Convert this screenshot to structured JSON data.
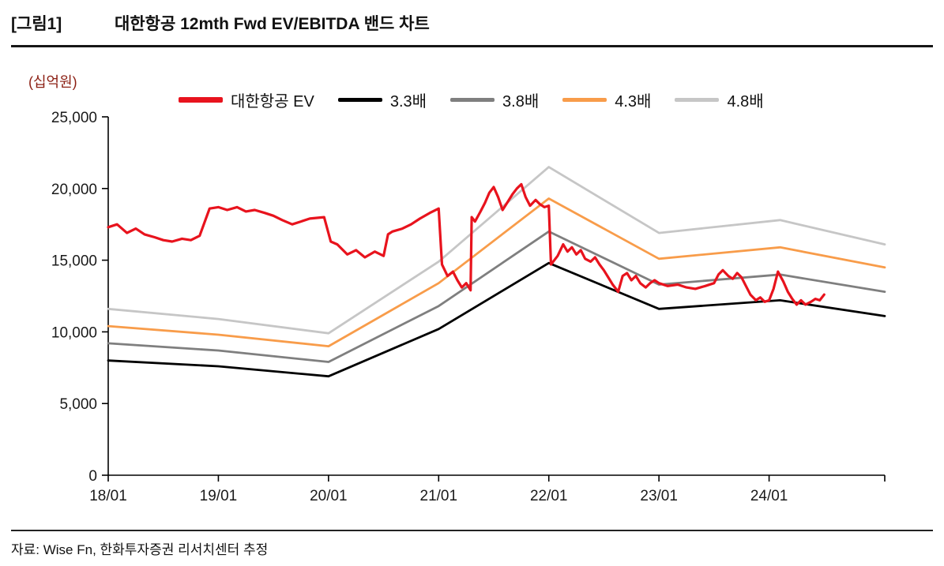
{
  "header": {
    "figure_label": "[그림1]",
    "title": "대한항공 12mth Fwd EV/EBITDA 밴드 차트"
  },
  "footer": {
    "source": "자료: Wise Fn, 한화투자증권 리서치센터 추정"
  },
  "chart_data": {
    "type": "line",
    "title": "대한항공 12mth Fwd EV/EBITDA 밴드 차트",
    "unit_label": "(십억원)",
    "ylabel": "십억원",
    "xlabel": "",
    "grid": false,
    "legend_position": "top",
    "xlim": [
      18.0,
      25.05
    ],
    "ylim": [
      0,
      25000
    ],
    "axis_color": "#000000",
    "tick_color": "#1a1a1a",
    "x_ticks": [
      {
        "v": 18.0,
        "label": "18/01"
      },
      {
        "v": 19.0,
        "label": "19/01"
      },
      {
        "v": 20.0,
        "label": "20/01"
      },
      {
        "v": 21.0,
        "label": "21/01"
      },
      {
        "v": 22.0,
        "label": "22/01"
      },
      {
        "v": 23.0,
        "label": "23/01"
      },
      {
        "v": 24.0,
        "label": "24/01"
      },
      {
        "v": 25.05,
        "label": ""
      }
    ],
    "y_ticks": [
      {
        "v": 0,
        "label": "0"
      },
      {
        "v": 5000,
        "label": "5,000"
      },
      {
        "v": 10000,
        "label": "10,000"
      },
      {
        "v": 15000,
        "label": "15,000"
      },
      {
        "v": 20000,
        "label": "20,000"
      },
      {
        "v": 25000,
        "label": "25,000"
      }
    ],
    "series": [
      {
        "id": "korean-air-ev",
        "name": "대한항공 EV",
        "color": "#e8131d",
        "width": 3.2,
        "points": [
          [
            18.0,
            17300
          ],
          [
            18.08,
            17500
          ],
          [
            18.17,
            16900
          ],
          [
            18.25,
            17200
          ],
          [
            18.33,
            16800
          ],
          [
            18.42,
            16600
          ],
          [
            18.5,
            16400
          ],
          [
            18.58,
            16300
          ],
          [
            18.67,
            16500
          ],
          [
            18.75,
            16400
          ],
          [
            18.83,
            16700
          ],
          [
            18.92,
            18600
          ],
          [
            19.0,
            18700
          ],
          [
            19.08,
            18500
          ],
          [
            19.17,
            18700
          ],
          [
            19.25,
            18400
          ],
          [
            19.33,
            18500
          ],
          [
            19.42,
            18300
          ],
          [
            19.5,
            18100
          ],
          [
            19.58,
            17800
          ],
          [
            19.67,
            17500
          ],
          [
            19.75,
            17700
          ],
          [
            19.83,
            17900
          ],
          [
            19.96,
            18000
          ],
          [
            20.02,
            16300
          ],
          [
            20.08,
            16100
          ],
          [
            20.17,
            15400
          ],
          [
            20.25,
            15700
          ],
          [
            20.33,
            15200
          ],
          [
            20.42,
            15600
          ],
          [
            20.5,
            15300
          ],
          [
            20.54,
            16800
          ],
          [
            20.58,
            17000
          ],
          [
            20.67,
            17200
          ],
          [
            20.75,
            17500
          ],
          [
            20.83,
            17900
          ],
          [
            20.92,
            18300
          ],
          [
            21.0,
            18600
          ],
          [
            21.03,
            14700
          ],
          [
            21.08,
            13900
          ],
          [
            21.13,
            14200
          ],
          [
            21.17,
            13600
          ],
          [
            21.21,
            13100
          ],
          [
            21.25,
            13400
          ],
          [
            21.29,
            12900
          ],
          [
            21.3,
            18000
          ],
          [
            21.33,
            17700
          ],
          [
            21.38,
            18400
          ],
          [
            21.42,
            19000
          ],
          [
            21.46,
            19700
          ],
          [
            21.5,
            20100
          ],
          [
            21.54,
            19400
          ],
          [
            21.58,
            18500
          ],
          [
            21.63,
            19100
          ],
          [
            21.67,
            19600
          ],
          [
            21.71,
            20000
          ],
          [
            21.75,
            20300
          ],
          [
            21.79,
            19400
          ],
          [
            21.83,
            18800
          ],
          [
            21.88,
            19200
          ],
          [
            21.92,
            18900
          ],
          [
            21.96,
            18700
          ],
          [
            22.0,
            18800
          ],
          [
            22.02,
            14700
          ],
          [
            22.08,
            15300
          ],
          [
            22.13,
            16100
          ],
          [
            22.17,
            15600
          ],
          [
            22.21,
            15900
          ],
          [
            22.25,
            15400
          ],
          [
            22.29,
            15700
          ],
          [
            22.33,
            15100
          ],
          [
            22.38,
            14900
          ],
          [
            22.42,
            15200
          ],
          [
            22.46,
            14700
          ],
          [
            22.5,
            14300
          ],
          [
            22.54,
            13800
          ],
          [
            22.58,
            13300
          ],
          [
            22.63,
            12800
          ],
          [
            22.67,
            13900
          ],
          [
            22.71,
            14100
          ],
          [
            22.75,
            13600
          ],
          [
            22.79,
            13900
          ],
          [
            22.83,
            13400
          ],
          [
            22.88,
            13100
          ],
          [
            22.92,
            13400
          ],
          [
            22.96,
            13600
          ],
          [
            23.0,
            13400
          ],
          [
            23.08,
            13200
          ],
          [
            23.17,
            13300
          ],
          [
            23.25,
            13100
          ],
          [
            23.33,
            13000
          ],
          [
            23.42,
            13200
          ],
          [
            23.5,
            13400
          ],
          [
            23.54,
            14000
          ],
          [
            23.58,
            14300
          ],
          [
            23.63,
            13900
          ],
          [
            23.67,
            13700
          ],
          [
            23.71,
            14100
          ],
          [
            23.75,
            13800
          ],
          [
            23.79,
            13200
          ],
          [
            23.83,
            12600
          ],
          [
            23.88,
            12200
          ],
          [
            23.92,
            12400
          ],
          [
            23.96,
            12100
          ],
          [
            24.0,
            12200
          ],
          [
            24.04,
            13000
          ],
          [
            24.08,
            14200
          ],
          [
            24.13,
            13500
          ],
          [
            24.17,
            12800
          ],
          [
            24.21,
            12300
          ],
          [
            24.25,
            11900
          ],
          [
            24.29,
            12200
          ],
          [
            24.33,
            11900
          ],
          [
            24.38,
            12100
          ],
          [
            24.42,
            12300
          ],
          [
            24.46,
            12200
          ],
          [
            24.5,
            12600
          ]
        ]
      },
      {
        "id": "band-3-3x",
        "name": "3.3배",
        "color": "#000000",
        "width": 2.8,
        "points": [
          [
            18.0,
            8000
          ],
          [
            19.0,
            7600
          ],
          [
            20.0,
            6900
          ],
          [
            21.0,
            10200
          ],
          [
            22.0,
            14800
          ],
          [
            23.0,
            11600
          ],
          [
            24.1,
            12200
          ],
          [
            25.05,
            11100
          ]
        ]
      },
      {
        "id": "band-3-8x",
        "name": "3.8배",
        "color": "#7f7f7f",
        "width": 2.8,
        "points": [
          [
            18.0,
            9200
          ],
          [
            19.0,
            8700
          ],
          [
            20.0,
            7900
          ],
          [
            21.0,
            11800
          ],
          [
            22.0,
            17000
          ],
          [
            23.0,
            13300
          ],
          [
            24.1,
            14000
          ],
          [
            25.05,
            12800
          ]
        ]
      },
      {
        "id": "band-4-3x",
        "name": "4.3배",
        "color": "#f89c4a",
        "width": 2.8,
        "points": [
          [
            18.0,
            10400
          ],
          [
            19.0,
            9800
          ],
          [
            20.0,
            9000
          ],
          [
            21.0,
            13400
          ],
          [
            22.0,
            19300
          ],
          [
            23.0,
            15100
          ],
          [
            24.1,
            15900
          ],
          [
            25.05,
            14500
          ]
        ]
      },
      {
        "id": "band-4-8x",
        "name": "4.8배",
        "color": "#c6c6c6",
        "width": 2.8,
        "points": [
          [
            18.0,
            11600
          ],
          [
            19.0,
            10900
          ],
          [
            20.0,
            9900
          ],
          [
            21.0,
            14900
          ],
          [
            22.0,
            21500
          ],
          [
            23.0,
            16900
          ],
          [
            24.1,
            17800
          ],
          [
            25.05,
            16100
          ]
        ]
      }
    ]
  }
}
